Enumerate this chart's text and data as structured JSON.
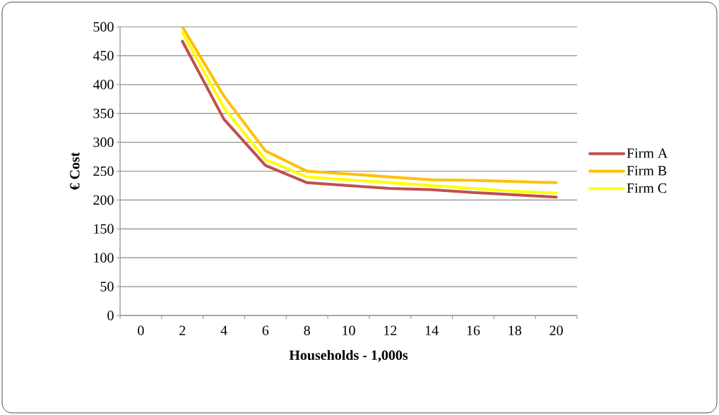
{
  "chart_data": {
    "type": "line",
    "xlabel": "Households - 1,000s",
    "ylabel": "€ Cost",
    "categories": [
      "0",
      "2",
      "4",
      "6",
      "8",
      "10",
      "12",
      "14",
      "16",
      "18",
      "20"
    ],
    "series": [
      {
        "name": "Firm A",
        "color": "#c0504d",
        "values": [
          null,
          475,
          340,
          260,
          230,
          225,
          220,
          218,
          213,
          209,
          205
        ]
      },
      {
        "name": "Firm B",
        "color": "#ffc000",
        "values": [
          null,
          500,
          380,
          285,
          250,
          245,
          240,
          235,
          234,
          232,
          230
        ]
      },
      {
        "name": "Firm C",
        "color": "#ffff00",
        "values": [
          null,
          490,
          360,
          270,
          240,
          235,
          230,
          225,
          220,
          215,
          212
        ]
      }
    ],
    "ylim": [
      0,
      500
    ],
    "yticks": [
      0,
      50,
      100,
      150,
      200,
      250,
      300,
      350,
      400,
      450,
      500
    ],
    "grid": "y",
    "legend": "right",
    "marker": "none",
    "line_style": "solid"
  }
}
